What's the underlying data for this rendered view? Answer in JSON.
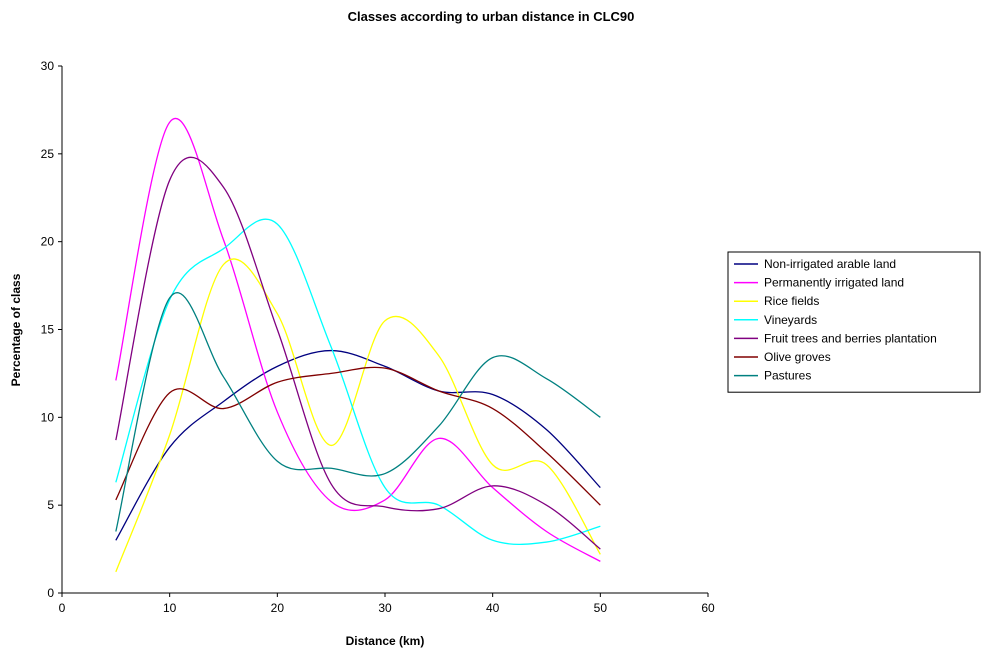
{
  "chart_data": {
    "type": "line",
    "title": "Classes according to urban distance in CLC90",
    "xlabel": "Distance (km)",
    "ylabel": "Percentage of class",
    "xlim": [
      0,
      60
    ],
    "ylim": [
      0,
      30
    ],
    "x_ticks": [
      "0",
      "10",
      "20",
      "30",
      "40",
      "50",
      "60"
    ],
    "y_ticks": [
      "0",
      "5",
      "10",
      "15",
      "20",
      "25",
      "30"
    ],
    "grid": false,
    "legend_position": "right",
    "x": [
      5,
      10,
      15,
      20,
      25,
      30,
      35,
      40,
      45,
      50
    ],
    "series": [
      {
        "name": "Non-irrigated arable land",
        "color": "#000080",
        "values": [
          3.0,
          8.3,
          10.9,
          12.9,
          13.8,
          12.9,
          11.5,
          11.3,
          9.3,
          6.0
        ]
      },
      {
        "name": "Permanently irrigated land",
        "color": "#FF00FF",
        "values": [
          12.1,
          26.8,
          20.1,
          10.3,
          5.2,
          5.3,
          8.8,
          6.0,
          3.5,
          1.8
        ]
      },
      {
        "name": "Rice fields",
        "color": "#FFFF00",
        "values": [
          1.2,
          9.0,
          18.7,
          15.9,
          8.4,
          15.5,
          13.5,
          7.3,
          7.3,
          2.2
        ]
      },
      {
        "name": "Vineyards",
        "color": "#00FFFF",
        "values": [
          6.3,
          16.7,
          19.6,
          21.0,
          14.0,
          6.0,
          5.0,
          3.0,
          2.9,
          3.8
        ]
      },
      {
        "name": "Fruit trees and berries plantation",
        "color": "#800080",
        "values": [
          8.7,
          23.5,
          23.1,
          15.0,
          6.2,
          4.9,
          4.8,
          6.1,
          5.0,
          2.5
        ]
      },
      {
        "name": "Olive groves",
        "color": "#800000",
        "values": [
          5.3,
          11.4,
          10.5,
          12.0,
          12.5,
          12.8,
          11.5,
          10.5,
          8.0,
          5.0
        ]
      },
      {
        "name": "Pastures",
        "color": "#008080",
        "values": [
          3.5,
          16.8,
          12.3,
          7.5,
          7.1,
          6.8,
          9.5,
          13.4,
          12.2,
          10.0
        ]
      }
    ]
  }
}
